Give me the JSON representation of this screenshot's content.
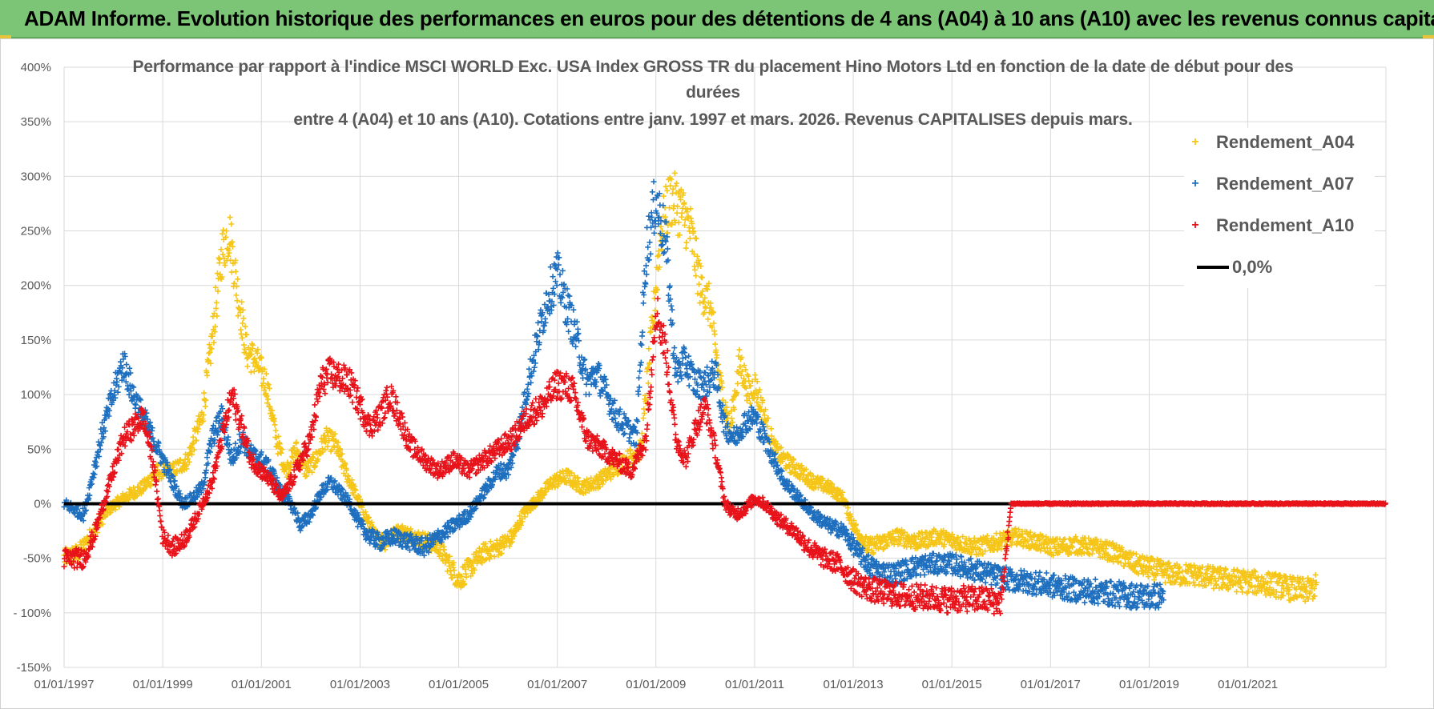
{
  "header": {
    "title": "ADAM Informe. Evolution historique des performances en euros pour des détentions de 4 ans (A04) à 10 ans (A10) avec les revenus connus capitalisés"
  },
  "chart_data": {
    "type": "scatter",
    "title_lines": [
      "Performance par rapport à l'indice MSCI WORLD Exc. USA Index GROSS TR  du placement Hino Motors Ltd en fonction de la date de début pour des",
      "durées",
      "entre 4 (A04) et 10 ans (A10).  Cotations entre janv. 1997 et mars. 2026.  Revenus CAPITALISES depuis mars."
    ],
    "y_ticks": [
      "400%",
      "350%",
      "300%",
      "250%",
      "200%",
      "150%",
      "100%",
      "50%",
      "0%",
      "-50%",
      "- 100%",
      "-150%"
    ],
    "y_tick_values": [
      400,
      350,
      300,
      250,
      200,
      150,
      100,
      50,
      0,
      -50,
      -100,
      -150
    ],
    "ylim": [
      -150,
      400
    ],
    "x_ticks": [
      "01/01/1997",
      "01/01/1999",
      "01/01/2001",
      "01/01/2003",
      "01/01/2005",
      "01/01/2007",
      "01/01/2009",
      "01/01/2011",
      "01/01/2013",
      "01/01/2015",
      "01/01/2017",
      "01/01/2019",
      "01/01/2021"
    ],
    "x_tick_values": [
      1997,
      1999,
      2001,
      2003,
      2005,
      2007,
      2009,
      2011,
      2013,
      2015,
      2017,
      2019,
      2021
    ],
    "xlim": [
      1997,
      2023.8
    ],
    "series": [
      {
        "name": "Rendement_A04",
        "color": "#f5c518",
        "marker": "+",
        "x_end": 2022.4,
        "points": [
          [
            1997.0,
            -50
          ],
          [
            1997.3,
            -45
          ],
          [
            1997.6,
            -25
          ],
          [
            1997.9,
            -5
          ],
          [
            1998.2,
            5
          ],
          [
            1998.6,
            15
          ],
          [
            1998.9,
            30
          ],
          [
            1999.2,
            30
          ],
          [
            1999.5,
            40
          ],
          [
            1999.8,
            80
          ],
          [
            2000.0,
            150
          ],
          [
            2000.2,
            230
          ],
          [
            2000.35,
            250
          ],
          [
            2000.5,
            200
          ],
          [
            2000.7,
            140
          ],
          [
            2000.9,
            130
          ],
          [
            2001.1,
            110
          ],
          [
            2001.3,
            60
          ],
          [
            2001.5,
            30
          ],
          [
            2001.7,
            50
          ],
          [
            2001.9,
            30
          ],
          [
            2002.1,
            40
          ],
          [
            2002.3,
            60
          ],
          [
            2002.5,
            55
          ],
          [
            2002.7,
            30
          ],
          [
            2002.9,
            10
          ],
          [
            2003.1,
            -10
          ],
          [
            2003.3,
            -30
          ],
          [
            2003.5,
            -35
          ],
          [
            2003.8,
            -25
          ],
          [
            2004.1,
            -30
          ],
          [
            2004.4,
            -35
          ],
          [
            2004.6,
            -40
          ],
          [
            2004.8,
            -55
          ],
          [
            2005.0,
            -70
          ],
          [
            2005.2,
            -60
          ],
          [
            2005.5,
            -45
          ],
          [
            2005.8,
            -40
          ],
          [
            2006.1,
            -30
          ],
          [
            2006.3,
            -10
          ],
          [
            2006.6,
            5
          ],
          [
            2006.9,
            20
          ],
          [
            2007.2,
            25
          ],
          [
            2007.5,
            15
          ],
          [
            2007.8,
            20
          ],
          [
            2008.1,
            30
          ],
          [
            2008.4,
            40
          ],
          [
            2008.7,
            50
          ],
          [
            2008.9,
            150
          ],
          [
            2009.1,
            250
          ],
          [
            2009.3,
            280
          ],
          [
            2009.5,
            270
          ],
          [
            2009.7,
            250
          ],
          [
            2009.9,
            200
          ],
          [
            2010.1,
            180
          ],
          [
            2010.3,
            110
          ],
          [
            2010.5,
            70
          ],
          [
            2010.7,
            130
          ],
          [
            2010.9,
            100
          ],
          [
            2011.0,
            110
          ],
          [
            2011.2,
            80
          ],
          [
            2011.4,
            50
          ],
          [
            2011.6,
            40
          ],
          [
            2011.9,
            30
          ],
          [
            2012.2,
            20
          ],
          [
            2012.5,
            15
          ],
          [
            2012.8,
            5
          ],
          [
            2013.0,
            -20
          ],
          [
            2013.3,
            -40
          ],
          [
            2013.6,
            -35
          ],
          [
            2013.9,
            -30
          ],
          [
            2014.3,
            -35
          ],
          [
            2014.7,
            -30
          ],
          [
            2015.1,
            -35
          ],
          [
            2015.5,
            -40
          ],
          [
            2015.9,
            -35
          ],
          [
            2016.3,
            -30
          ],
          [
            2016.7,
            -35
          ],
          [
            2017.1,
            -40
          ],
          [
            2017.5,
            -38
          ],
          [
            2017.9,
            -40
          ],
          [
            2018.3,
            -45
          ],
          [
            2018.7,
            -55
          ],
          [
            2019.1,
            -60
          ],
          [
            2019.5,
            -65
          ],
          [
            2019.9,
            -65
          ],
          [
            2020.3,
            -68
          ],
          [
            2020.7,
            -70
          ],
          [
            2021.1,
            -72
          ],
          [
            2021.5,
            -74
          ],
          [
            2021.9,
            -78
          ],
          [
            2022.2,
            -80
          ],
          [
            2022.4,
            -75
          ]
        ]
      },
      {
        "name": "Rendement_A07",
        "color": "#1f6fbf",
        "marker": "+",
        "x_end": 2019.3,
        "points": [
          [
            1997.0,
            0
          ],
          [
            1997.2,
            -5
          ],
          [
            1997.4,
            -10
          ],
          [
            1997.6,
            30
          ],
          [
            1997.8,
            70
          ],
          [
            1998.0,
            100
          ],
          [
            1998.2,
            130
          ],
          [
            1998.4,
            100
          ],
          [
            1998.6,
            80
          ],
          [
            1998.8,
            60
          ],
          [
            1999.0,
            40
          ],
          [
            1999.2,
            20
          ],
          [
            1999.4,
            0
          ],
          [
            1999.6,
            5
          ],
          [
            1999.8,
            15
          ],
          [
            2000.0,
            60
          ],
          [
            2000.2,
            80
          ],
          [
            2000.4,
            40
          ],
          [
            2000.6,
            60
          ],
          [
            2000.8,
            45
          ],
          [
            2001.0,
            40
          ],
          [
            2001.2,
            30
          ],
          [
            2001.4,
            10
          ],
          [
            2001.6,
            0
          ],
          [
            2001.8,
            -20
          ],
          [
            2002.0,
            -10
          ],
          [
            2002.2,
            10
          ],
          [
            2002.4,
            20
          ],
          [
            2002.6,
            10
          ],
          [
            2002.8,
            0
          ],
          [
            2003.0,
            -20
          ],
          [
            2003.2,
            -30
          ],
          [
            2003.4,
            -35
          ],
          [
            2003.7,
            -30
          ],
          [
            2004.0,
            -35
          ],
          [
            2004.3,
            -40
          ],
          [
            2004.6,
            -30
          ],
          [
            2004.9,
            -20
          ],
          [
            2005.2,
            -10
          ],
          [
            2005.5,
            10
          ],
          [
            2005.8,
            30
          ],
          [
            2006.0,
            30
          ],
          [
            2006.2,
            60
          ],
          [
            2006.4,
            110
          ],
          [
            2006.6,
            150
          ],
          [
            2006.8,
            190
          ],
          [
            2007.0,
            210
          ],
          [
            2007.2,
            180
          ],
          [
            2007.4,
            150
          ],
          [
            2007.6,
            110
          ],
          [
            2007.8,
            120
          ],
          [
            2008.0,
            100
          ],
          [
            2008.2,
            80
          ],
          [
            2008.4,
            70
          ],
          [
            2008.6,
            60
          ],
          [
            2008.8,
            230
          ],
          [
            2009.0,
            280
          ],
          [
            2009.2,
            240
          ],
          [
            2009.4,
            120
          ],
          [
            2009.6,
            130
          ],
          [
            2009.8,
            110
          ],
          [
            2010.0,
            110
          ],
          [
            2010.2,
            120
          ],
          [
            2010.4,
            70
          ],
          [
            2010.6,
            60
          ],
          [
            2010.8,
            75
          ],
          [
            2011.0,
            80
          ],
          [
            2011.2,
            60
          ],
          [
            2011.4,
            40
          ],
          [
            2011.6,
            20
          ],
          [
            2011.9,
            5
          ],
          [
            2012.2,
            -10
          ],
          [
            2012.5,
            -20
          ],
          [
            2012.8,
            -25
          ],
          [
            2013.1,
            -45
          ],
          [
            2013.4,
            -60
          ],
          [
            2013.8,
            -65
          ],
          [
            2014.2,
            -58
          ],
          [
            2014.6,
            -55
          ],
          [
            2015.0,
            -55
          ],
          [
            2015.4,
            -60
          ],
          [
            2015.8,
            -65
          ],
          [
            2016.2,
            -70
          ],
          [
            2016.6,
            -72
          ],
          [
            2017.0,
            -75
          ],
          [
            2017.4,
            -78
          ],
          [
            2017.8,
            -80
          ],
          [
            2018.2,
            -82
          ],
          [
            2018.6,
            -84
          ],
          [
            2019.0,
            -85
          ],
          [
            2019.3,
            -84
          ]
        ]
      },
      {
        "name": "Rendement_A10",
        "color": "#e8131a",
        "marker": "+",
        "x_end": 2023.8,
        "points": [
          [
            1997.0,
            -50
          ],
          [
            1997.2,
            -50
          ],
          [
            1997.4,
            -50
          ],
          [
            1997.6,
            -30
          ],
          [
            1997.8,
            0
          ],
          [
            1998.0,
            30
          ],
          [
            1998.2,
            60
          ],
          [
            1998.4,
            70
          ],
          [
            1998.6,
            80
          ],
          [
            1998.8,
            40
          ],
          [
            1999.0,
            -30
          ],
          [
            1999.2,
            -40
          ],
          [
            1999.4,
            -35
          ],
          [
            1999.6,
            -20
          ],
          [
            1999.8,
            0
          ],
          [
            2000.0,
            20
          ],
          [
            2000.2,
            60
          ],
          [
            2000.4,
            100
          ],
          [
            2000.6,
            70
          ],
          [
            2000.8,
            40
          ],
          [
            2001.0,
            30
          ],
          [
            2001.2,
            20
          ],
          [
            2001.4,
            5
          ],
          [
            2001.6,
            20
          ],
          [
            2001.8,
            40
          ],
          [
            2002.0,
            60
          ],
          [
            2002.2,
            110
          ],
          [
            2002.4,
            120
          ],
          [
            2002.6,
            115
          ],
          [
            2002.8,
            110
          ],
          [
            2003.0,
            90
          ],
          [
            2003.2,
            70
          ],
          [
            2003.4,
            80
          ],
          [
            2003.6,
            100
          ],
          [
            2003.8,
            80
          ],
          [
            2004.0,
            55
          ],
          [
            2004.3,
            40
          ],
          [
            2004.6,
            30
          ],
          [
            2004.9,
            40
          ],
          [
            2005.2,
            30
          ],
          [
            2005.5,
            40
          ],
          [
            2005.8,
            50
          ],
          [
            2006.1,
            60
          ],
          [
            2006.4,
            80
          ],
          [
            2006.7,
            90
          ],
          [
            2007.0,
            110
          ],
          [
            2007.3,
            105
          ],
          [
            2007.6,
            60
          ],
          [
            2007.9,
            50
          ],
          [
            2008.2,
            40
          ],
          [
            2008.5,
            30
          ],
          [
            2008.8,
            60
          ],
          [
            2009.0,
            180
          ],
          [
            2009.2,
            140
          ],
          [
            2009.4,
            60
          ],
          [
            2009.6,
            40
          ],
          [
            2009.8,
            70
          ],
          [
            2010.0,
            90
          ],
          [
            2010.2,
            50
          ],
          [
            2010.4,
            0
          ],
          [
            2010.6,
            -10
          ],
          [
            2010.8,
            -5
          ],
          [
            2011.0,
            5
          ],
          [
            2011.2,
            0
          ],
          [
            2011.5,
            -15
          ],
          [
            2011.8,
            -25
          ],
          [
            2012.1,
            -40
          ],
          [
            2012.4,
            -50
          ],
          [
            2012.7,
            -55
          ],
          [
            2013.0,
            -70
          ],
          [
            2013.3,
            -78
          ],
          [
            2013.7,
            -82
          ],
          [
            2014.1,
            -85
          ],
          [
            2014.5,
            -86
          ],
          [
            2014.9,
            -88
          ],
          [
            2015.3,
            -87
          ],
          [
            2015.7,
            -88
          ],
          [
            2016.0,
            -90
          ],
          [
            2016.2,
            0
          ],
          [
            2016.8,
            0
          ],
          [
            2017.4,
            0
          ],
          [
            2018.0,
            0
          ],
          [
            2018.6,
            0
          ],
          [
            2019.2,
            0
          ],
          [
            2019.8,
            0
          ],
          [
            2020.4,
            0
          ],
          [
            2021.0,
            0
          ],
          [
            2021.6,
            0
          ],
          [
            2022.2,
            0
          ],
          [
            2022.8,
            0
          ],
          [
            2023.4,
            0
          ],
          [
            2023.8,
            0
          ]
        ]
      },
      {
        "name": "0,0%",
        "color": "#000000",
        "marker": "line",
        "value": 0
      }
    ],
    "legend_position": "top-right"
  }
}
